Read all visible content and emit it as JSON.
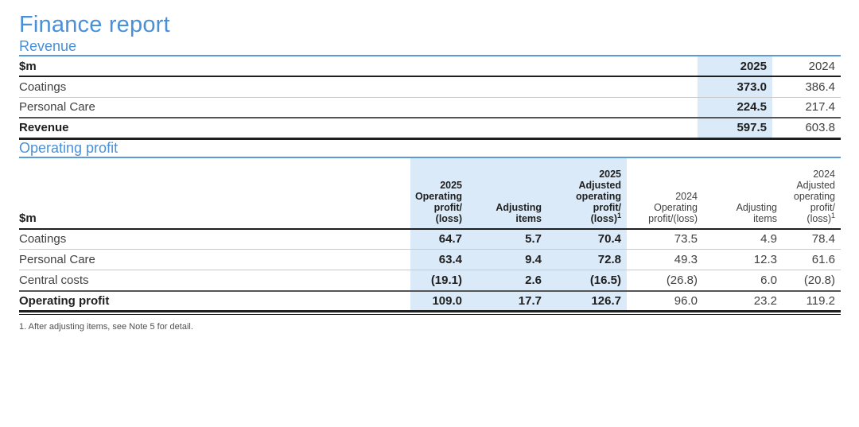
{
  "page": {
    "title": "Finance report",
    "footnote": "1. After adjusting items, see Note 5 for detail."
  },
  "revenue": {
    "heading": "Revenue",
    "table": {
      "unit_label": "$m",
      "columns": [
        "2025",
        "2024"
      ],
      "rows": [
        {
          "label": "Coatings",
          "values": [
            "373.0",
            "386.4"
          ]
        },
        {
          "label": "Personal Care",
          "values": [
            "224.5",
            "217.4"
          ]
        },
        {
          "label": "Revenue",
          "values": [
            "597.5",
            "603.8"
          ]
        }
      ]
    }
  },
  "operating": {
    "heading": "Operating profit",
    "table": {
      "unit_label": "$m",
      "columns": [
        {
          "text": "2025\nOperating\nprofit/\n(loss)",
          "sup": ""
        },
        {
          "text": "Adjusting\nitems",
          "sup": ""
        },
        {
          "text": "2025\nAdjusted\noperating\nprofit/\n(loss)",
          "sup": "1"
        },
        {
          "text": "2024\nOperating\nprofit/(loss)",
          "sup": ""
        },
        {
          "text": "Adjusting\nitems",
          "sup": ""
        },
        {
          "text": "2024\nAdjusted\noperating\nprofit/\n(loss)",
          "sup": "1"
        }
      ],
      "rows": [
        {
          "label": "Coatings",
          "values": [
            "64.7",
            "5.7",
            "70.4",
            "73.5",
            "4.9",
            "78.4"
          ]
        },
        {
          "label": "Personal Care",
          "values": [
            "63.4",
            "9.4",
            "72.8",
            "49.3",
            "12.3",
            "61.6"
          ]
        },
        {
          "label": "Central costs",
          "values": [
            "(19.1)",
            "2.6",
            "(16.5)",
            "(26.8)",
            "6.0",
            "(20.8)"
          ]
        },
        {
          "label": "Operating profit",
          "values": [
            "109.0",
            "17.7",
            "126.7",
            "96.0",
            "23.2",
            "119.2"
          ]
        }
      ]
    }
  },
  "colors": {
    "heading_blue": "#4a90d8",
    "rule_blue": "#5b9ad6",
    "highlight_blue": "#daeaf8"
  }
}
